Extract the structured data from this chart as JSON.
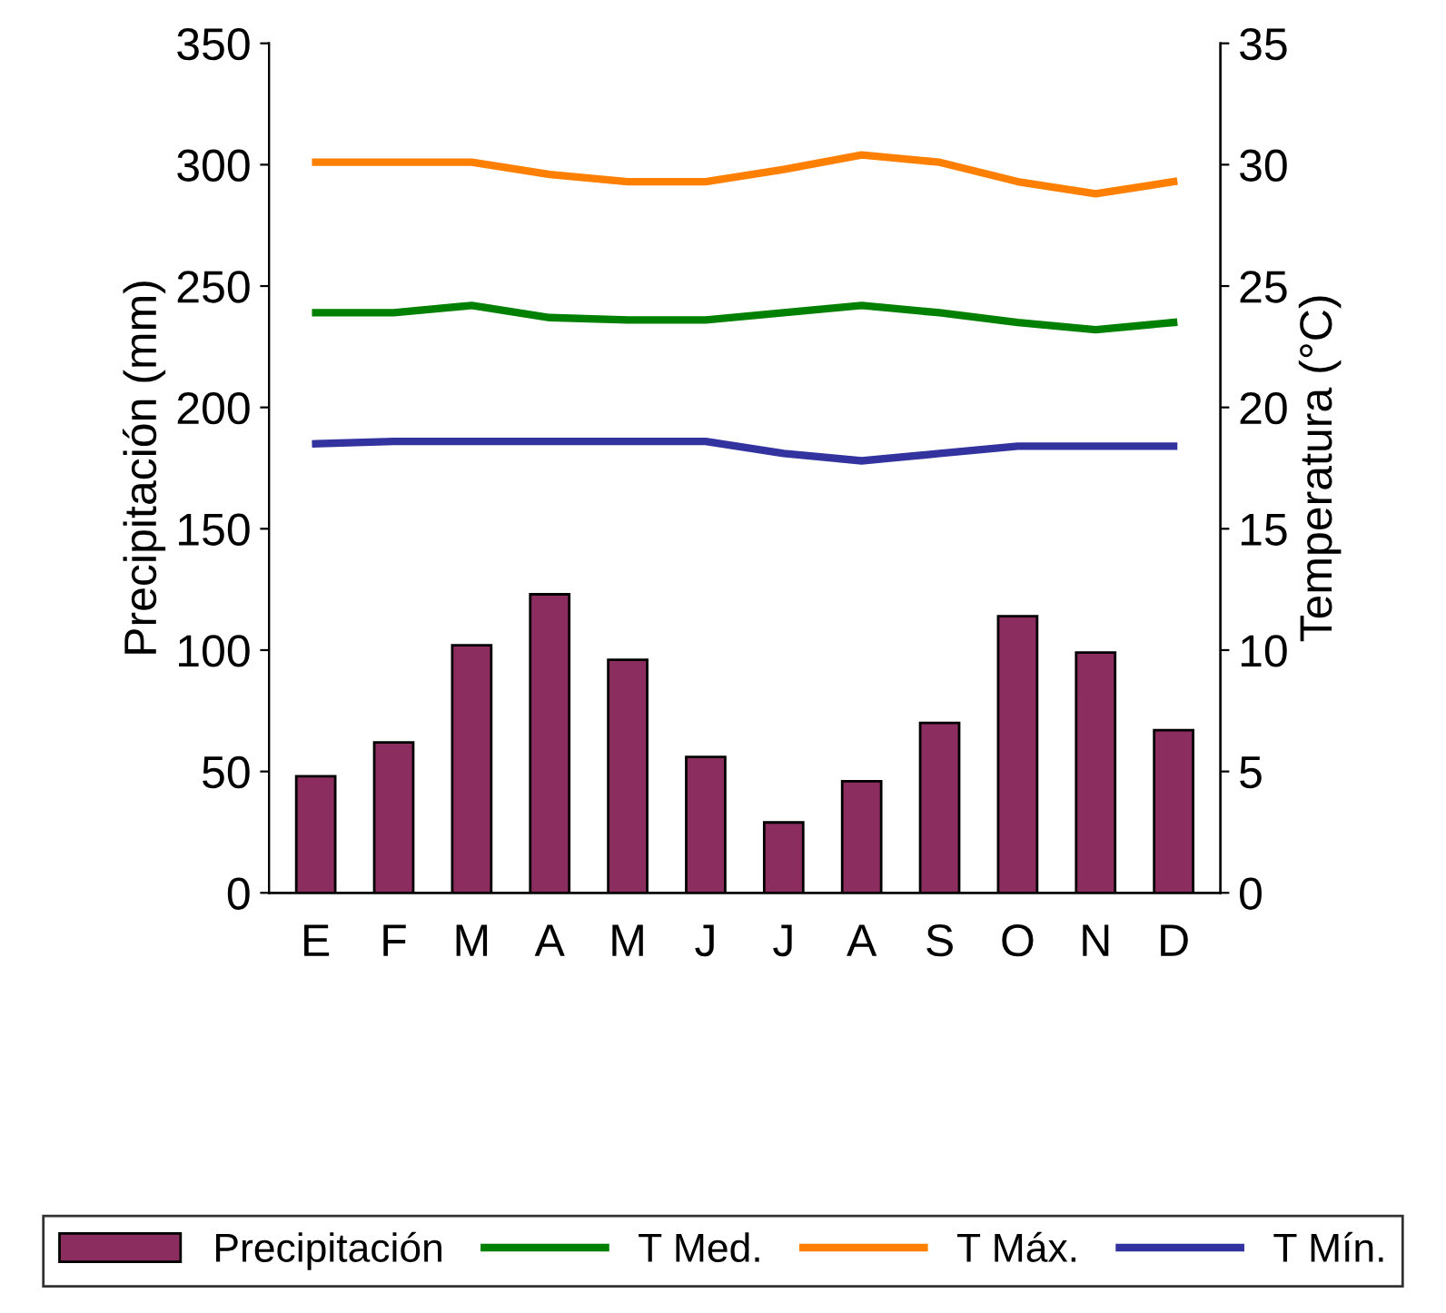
{
  "chart_data": {
    "type": "bar",
    "ylabel": "Precipitación (mm)",
    "y2label": "Temperatura (°C)",
    "categories": [
      "E",
      "F",
      "M",
      "A",
      "M",
      "J",
      "J",
      "A",
      "S",
      "O",
      "N",
      "D"
    ],
    "series": [
      {
        "name": "Precipitación",
        "color": "#8b2d5e",
        "values": [
          48,
          62,
          102,
          123,
          96,
          56,
          29,
          46,
          70,
          114,
          99,
          67
        ]
      },
      {
        "name": "T Med.",
        "type": "line",
        "axis": "y2",
        "color": "#008000",
        "values": [
          23.9,
          23.9,
          24.2,
          23.7,
          23.6,
          23.6,
          23.9,
          24.2,
          23.9,
          23.5,
          23.2,
          23.5
        ]
      },
      {
        "name": "T Máx.",
        "type": "line",
        "axis": "y2",
        "color": "#ff7f00",
        "values": [
          30.1,
          30.1,
          30.1,
          29.6,
          29.3,
          29.3,
          29.8,
          30.4,
          30.1,
          29.3,
          28.8,
          29.3
        ]
      },
      {
        "name": "T Mín.",
        "type": "line",
        "axis": "y2",
        "color": "#3333a0",
        "values": [
          18.5,
          18.6,
          18.6,
          18.6,
          18.6,
          18.6,
          18.1,
          17.8,
          18.1,
          18.4,
          18.4,
          18.4
        ]
      }
    ],
    "ylim": [
      0,
      350
    ],
    "yticks": [
      0,
      50,
      100,
      150,
      200,
      250,
      300,
      350
    ],
    "y2lim": [
      0,
      35
    ],
    "y2ticks": [
      0,
      5,
      10,
      15,
      20,
      25,
      30,
      35
    ],
    "grid": false,
    "legend": "bottom",
    "marker": "none",
    "line_style": "solid"
  }
}
